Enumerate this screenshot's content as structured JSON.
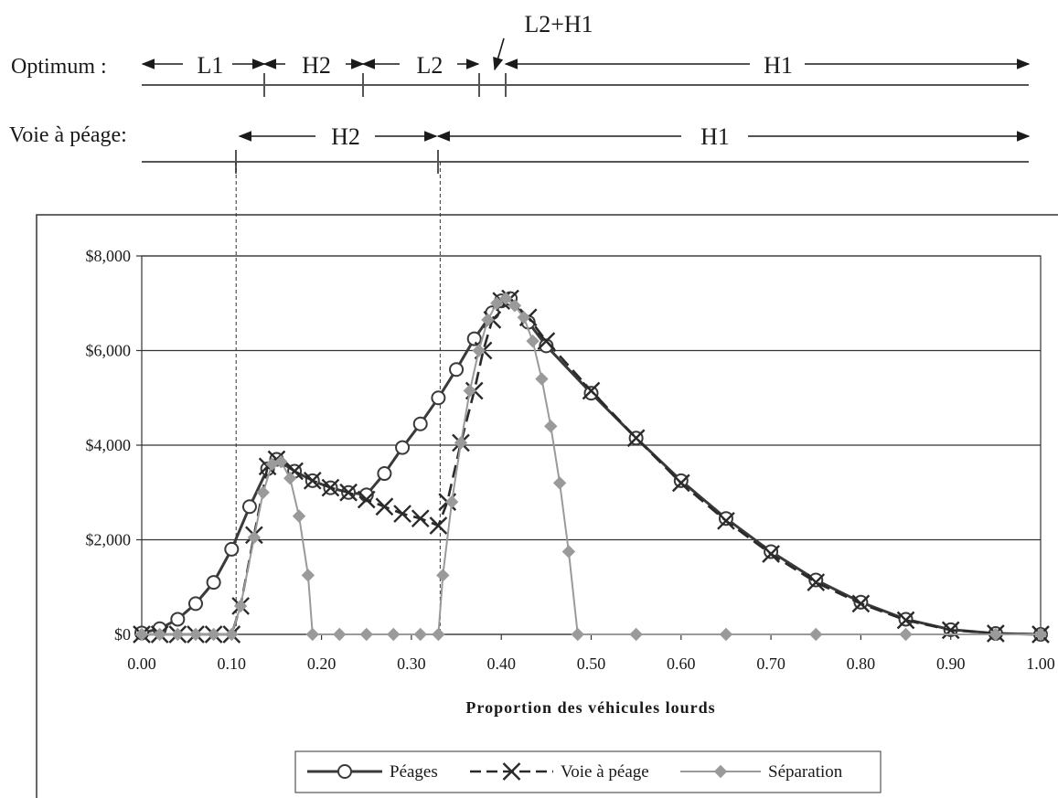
{
  "header": {
    "optimum_label": "Optimum :",
    "optimum_segments": [
      "L1",
      "H2",
      "L2",
      "H1"
    ],
    "optimum_callout": "L2+H1",
    "toll_label": "Voie à péage:",
    "toll_segments": [
      "H2",
      "H1"
    ]
  },
  "chart_data": {
    "type": "line",
    "title": "",
    "xlabel": "Proportion des véhicules lourds",
    "ylabel": "",
    "xlim": [
      0,
      1
    ],
    "ylim": [
      0,
      8000
    ],
    "x_ticks": [
      "0.00",
      "0.10",
      "0.20",
      "0.30",
      "0.40",
      "0.50",
      "0.60",
      "0.70",
      "0.80",
      "0.90",
      "1.00"
    ],
    "y_ticks": [
      "$0",
      "$2,000",
      "$4,000",
      "$6,000",
      "$8,000"
    ],
    "grid": true,
    "legend_position": "bottom",
    "reference_lines_x": [
      0.105,
      0.332
    ],
    "series": [
      {
        "name": "Péages",
        "color": "#3a3a3a",
        "marker": "circle",
        "points": [
          [
            0.0,
            30
          ],
          [
            0.02,
            120
          ],
          [
            0.04,
            320
          ],
          [
            0.06,
            650
          ],
          [
            0.08,
            1100
          ],
          [
            0.1,
            1800
          ],
          [
            0.12,
            2700
          ],
          [
            0.14,
            3500
          ],
          [
            0.15,
            3700
          ],
          [
            0.17,
            3450
          ],
          [
            0.19,
            3250
          ],
          [
            0.21,
            3100
          ],
          [
            0.23,
            3000
          ],
          [
            0.25,
            2950
          ],
          [
            0.27,
            3400
          ],
          [
            0.29,
            3950
          ],
          [
            0.31,
            4450
          ],
          [
            0.33,
            5000
          ],
          [
            0.35,
            5600
          ],
          [
            0.37,
            6250
          ],
          [
            0.39,
            6800
          ],
          [
            0.4,
            7050
          ],
          [
            0.41,
            7100
          ],
          [
            0.43,
            6600
          ],
          [
            0.45,
            6100
          ],
          [
            0.5,
            5100
          ],
          [
            0.55,
            4150
          ],
          [
            0.6,
            3250
          ],
          [
            0.65,
            2450
          ],
          [
            0.7,
            1750
          ],
          [
            0.75,
            1150
          ],
          [
            0.8,
            680
          ],
          [
            0.85,
            320
          ],
          [
            0.9,
            100
          ],
          [
            0.95,
            20
          ],
          [
            1.0,
            0
          ]
        ]
      },
      {
        "name": "Voie à péage",
        "color": "#2a2a2a",
        "marker": "x",
        "points": [
          [
            0.0,
            0
          ],
          [
            0.02,
            0
          ],
          [
            0.04,
            0
          ],
          [
            0.06,
            0
          ],
          [
            0.08,
            0
          ],
          [
            0.1,
            0
          ],
          [
            0.11,
            600
          ],
          [
            0.125,
            2100
          ],
          [
            0.14,
            3550
          ],
          [
            0.15,
            3700
          ],
          [
            0.17,
            3450
          ],
          [
            0.19,
            3250
          ],
          [
            0.21,
            3100
          ],
          [
            0.23,
            3000
          ],
          [
            0.25,
            2850
          ],
          [
            0.27,
            2700
          ],
          [
            0.29,
            2550
          ],
          [
            0.31,
            2450
          ],
          [
            0.33,
            2300
          ],
          [
            0.34,
            2800
          ],
          [
            0.355,
            4050
          ],
          [
            0.37,
            5150
          ],
          [
            0.38,
            6000
          ],
          [
            0.39,
            6650
          ],
          [
            0.4,
            7050
          ],
          [
            0.41,
            7100
          ],
          [
            0.43,
            6700
          ],
          [
            0.45,
            6200
          ],
          [
            0.5,
            5150
          ],
          [
            0.55,
            4150
          ],
          [
            0.6,
            3200
          ],
          [
            0.65,
            2400
          ],
          [
            0.7,
            1700
          ],
          [
            0.75,
            1100
          ],
          [
            0.8,
            650
          ],
          [
            0.85,
            300
          ],
          [
            0.9,
            90
          ],
          [
            0.95,
            20
          ],
          [
            1.0,
            0
          ]
        ]
      },
      {
        "name": "Séparation",
        "color": "#9a9a9a",
        "marker": "diamond",
        "points": [
          [
            0.0,
            0
          ],
          [
            0.02,
            0
          ],
          [
            0.04,
            0
          ],
          [
            0.06,
            0
          ],
          [
            0.08,
            0
          ],
          [
            0.1,
            0
          ],
          [
            0.11,
            600
          ],
          [
            0.125,
            2050
          ],
          [
            0.135,
            3000
          ],
          [
            0.145,
            3600
          ],
          [
            0.155,
            3650
          ],
          [
            0.165,
            3300
          ],
          [
            0.175,
            2500
          ],
          [
            0.185,
            1250
          ],
          [
            0.19,
            0
          ],
          [
            0.22,
            0
          ],
          [
            0.25,
            0
          ],
          [
            0.28,
            0
          ],
          [
            0.31,
            0
          ],
          [
            0.33,
            0
          ],
          [
            0.335,
            1250
          ],
          [
            0.345,
            2800
          ],
          [
            0.355,
            4050
          ],
          [
            0.365,
            5150
          ],
          [
            0.375,
            6000
          ],
          [
            0.385,
            6650
          ],
          [
            0.395,
            7000
          ],
          [
            0.405,
            7100
          ],
          [
            0.415,
            6950
          ],
          [
            0.425,
            6700
          ],
          [
            0.435,
            6200
          ],
          [
            0.445,
            5400
          ],
          [
            0.455,
            4400
          ],
          [
            0.465,
            3200
          ],
          [
            0.475,
            1750
          ],
          [
            0.485,
            0
          ],
          [
            0.55,
            0
          ],
          [
            0.65,
            0
          ],
          [
            0.75,
            0
          ],
          [
            0.85,
            0
          ],
          [
            0.95,
            0
          ],
          [
            1.0,
            0
          ]
        ]
      }
    ]
  }
}
